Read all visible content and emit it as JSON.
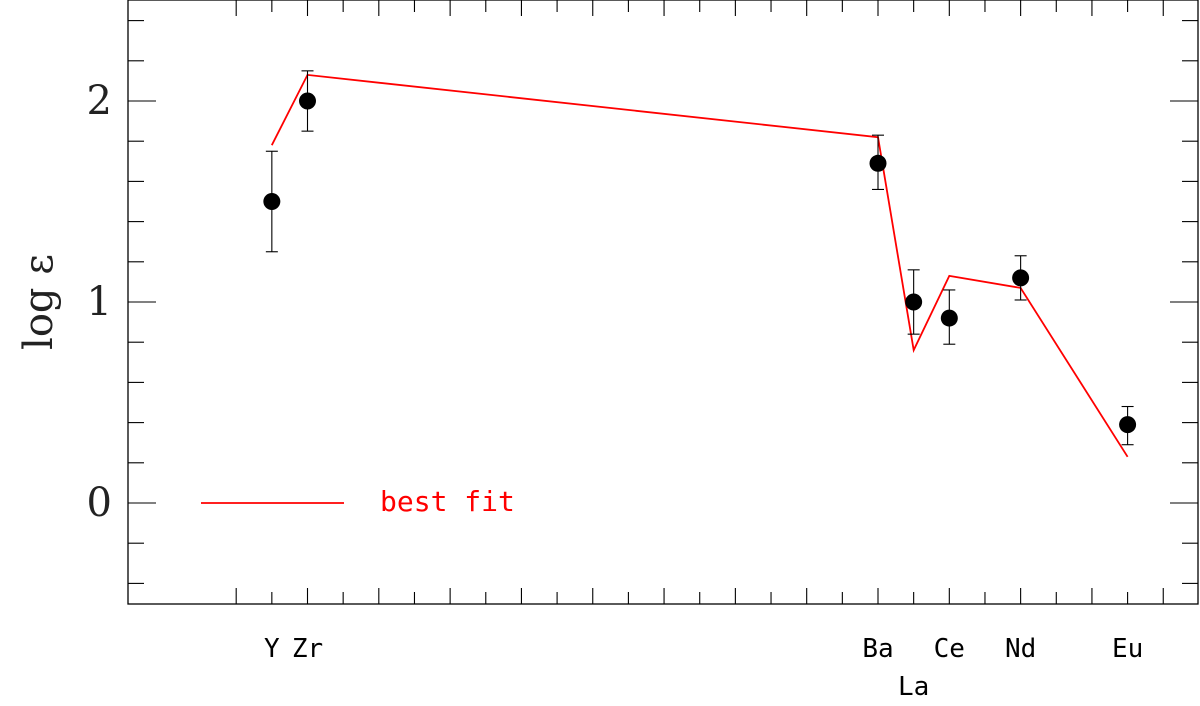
{
  "chart_data": {
    "type": "scatter",
    "title": "",
    "ylabel": "log ε",
    "xlabel": "",
    "ylim": [
      -0.5,
      2.5
    ],
    "y_ticks": [
      "0",
      "1",
      "2"
    ],
    "grid": false,
    "legend_position": "bottom-left",
    "x_axis": {
      "range": [
        38,
        65
      ],
      "element_ticks": [
        {
          "label": "Y",
          "z": 39
        },
        {
          "label": "Zr",
          "z": 40
        },
        {
          "label": "Ba",
          "z": 56
        },
        {
          "label": "La",
          "z": 57
        },
        {
          "label": "Ce",
          "z": 58
        },
        {
          "label": "Nd",
          "z": 60
        },
        {
          "label": "Eu",
          "z": 63
        }
      ]
    },
    "series": [
      {
        "kind": "observed",
        "points": [
          {
            "element": "Y",
            "z": 39,
            "y": 1.5,
            "err_low": 1.25,
            "err_high": 1.75
          },
          {
            "element": "Zr",
            "z": 40,
            "y": 2.0,
            "err_low": 1.85,
            "err_high": 2.15
          },
          {
            "element": "Ba",
            "z": 56,
            "y": 1.69,
            "err_low": 1.56,
            "err_high": 1.83
          },
          {
            "element": "La",
            "z": 57,
            "y": 1.0,
            "err_low": 0.84,
            "err_high": 1.16
          },
          {
            "element": "Ce",
            "z": 58,
            "y": 0.92,
            "err_low": 0.79,
            "err_high": 1.06
          },
          {
            "element": "Nd",
            "z": 60,
            "y": 1.12,
            "err_low": 1.01,
            "err_high": 1.23
          },
          {
            "element": "Eu",
            "z": 63,
            "y": 0.39,
            "err_low": 0.29,
            "err_high": 0.48
          }
        ]
      },
      {
        "name": "best fit",
        "kind": "model",
        "color": "#ff0000",
        "points": [
          {
            "z": 39,
            "y": 1.78
          },
          {
            "z": 40,
            "y": 2.13
          },
          {
            "z": 56,
            "y": 1.82
          },
          {
            "z": 57,
            "y": 0.76
          },
          {
            "z": 58,
            "y": 1.13
          },
          {
            "z": 60,
            "y": 1.07
          },
          {
            "z": 63,
            "y": 0.23
          }
        ]
      }
    ],
    "legend": {
      "label": "best fit",
      "color": "#ff0000"
    }
  }
}
